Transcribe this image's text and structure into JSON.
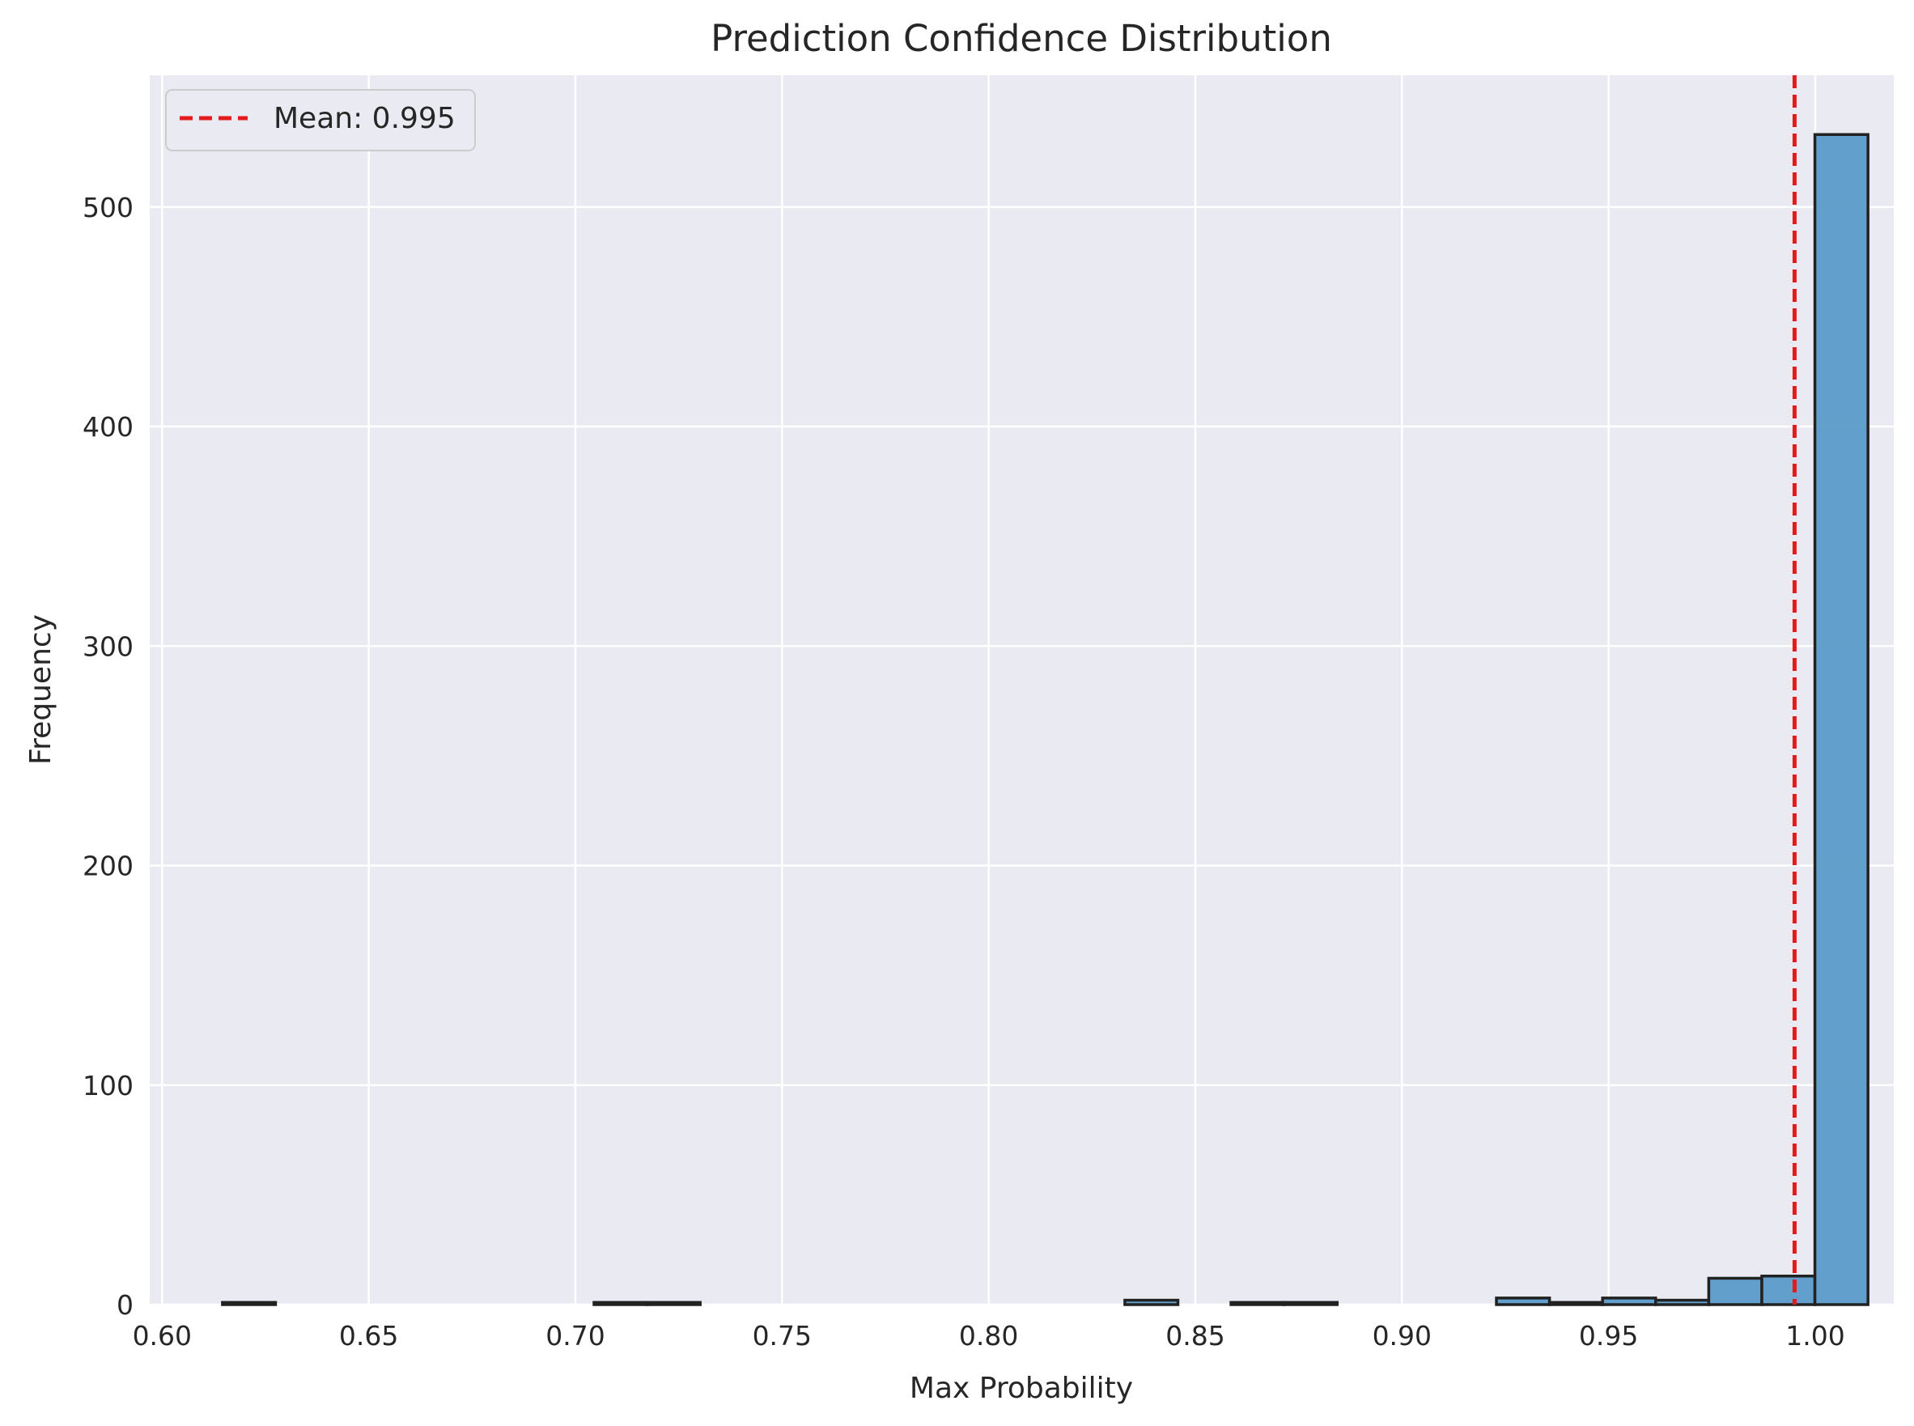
{
  "chart_data": {
    "type": "bar",
    "title": "Prediction Confidence Distribution",
    "xlabel": "Max Probability",
    "ylabel": "Frequency",
    "xlim": [
      0.597,
      1.019
    ],
    "ylim": [
      0,
      560
    ],
    "xticks": [
      0.6,
      0.65,
      0.7,
      0.75,
      0.8,
      0.85,
      0.9,
      0.95,
      1.0
    ],
    "xtick_labels": [
      "0.60",
      "0.65",
      "0.70",
      "0.75",
      "0.80",
      "0.85",
      "0.90",
      "0.95",
      "1.00"
    ],
    "yticks": [
      0,
      100,
      200,
      300,
      400,
      500
    ],
    "ytick_labels": [
      "0",
      "100",
      "200",
      "300",
      "400",
      "500"
    ],
    "grid": true,
    "legend_position": "top-left",
    "bins": {
      "start": 0.6146,
      "width": 0.012844,
      "counts": [
        1,
        0,
        0,
        0,
        0,
        0,
        0,
        1,
        1,
        0,
        0,
        0,
        0,
        0,
        0,
        0,
        0,
        2,
        0,
        1,
        1,
        0,
        0,
        0,
        3,
        1,
        3,
        2,
        12,
        13,
        533
      ]
    },
    "mean_line": {
      "value": 0.995,
      "label": "Mean: 0.995"
    }
  },
  "colors": {
    "bar_fill": "#5b9bc9",
    "bar_edge": "#222222",
    "mean_line": "#e41a1c",
    "plot_background": "#eaeaf2",
    "grid": "#ffffff"
  }
}
